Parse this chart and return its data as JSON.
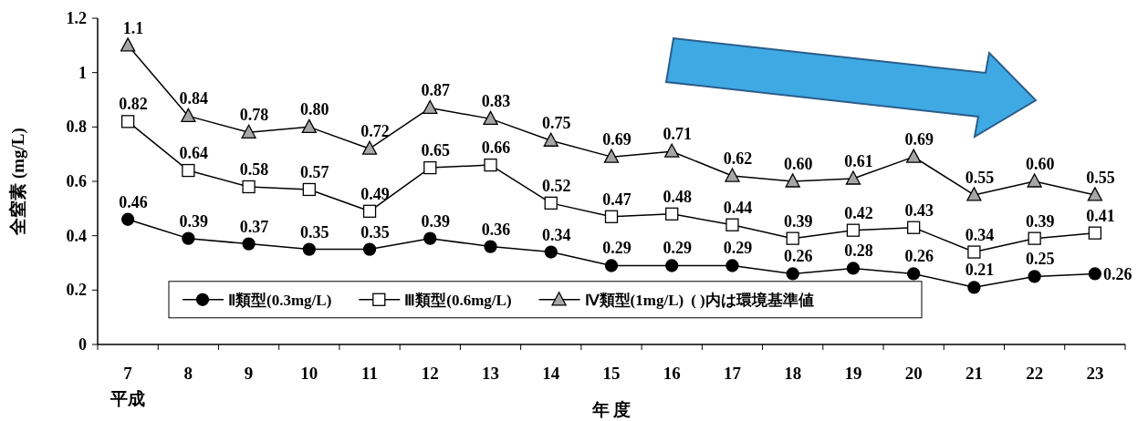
{
  "chart_data": {
    "type": "line",
    "ylabel": "全窒素 (mg/L)",
    "xlabel": "年 度",
    "annotations": [
      "( )内は環境基準値",
      "平成"
    ],
    "categories": [
      "7",
      "8",
      "9",
      "10",
      "11",
      "12",
      "13",
      "14",
      "15",
      "16",
      "17",
      "18",
      "19",
      "20",
      "21",
      "22",
      "23"
    ],
    "ylim": [
      0,
      1.2
    ],
    "yticks": [
      0,
      0.2,
      0.4,
      0.6,
      0.8,
      1,
      1.2
    ],
    "grid": false,
    "legend": "bottom",
    "series": [
      {
        "name": "Ⅱ類型(0.3mg/L)",
        "color": "#000000",
        "marker": "circle",
        "values": [
          0.46,
          0.39,
          0.37,
          0.35,
          0.35,
          0.39,
          0.36,
          0.34,
          0.29,
          0.29,
          0.29,
          0.26,
          0.28,
          0.26,
          0.21,
          0.25,
          0.26
        ],
        "value_labels": [
          "0.46",
          "0.39",
          "0.37",
          "0.35",
          "0.35",
          "0.39",
          "0.36",
          "0.34",
          "0.29",
          "0.29",
          "0.29",
          "0.26",
          "0.28",
          "0.26",
          "0.21",
          "0.25",
          "0.26"
        ]
      },
      {
        "name": "Ⅲ類型(0.6mg/L)",
        "color": "#ffffff",
        "marker": "square",
        "values": [
          0.82,
          0.64,
          0.58,
          0.57,
          0.49,
          0.65,
          0.66,
          0.52,
          0.47,
          0.48,
          0.44,
          0.39,
          0.42,
          0.43,
          0.34,
          0.39,
          0.41
        ],
        "value_labels": [
          "0.82",
          "0.64",
          "0.58",
          "0.57",
          "0.49",
          "0.65",
          "0.66",
          "0.52",
          "0.47",
          "0.48",
          "0.44",
          "0.39",
          "0.42",
          "0.43",
          "0.34",
          "0.39",
          "0.41"
        ]
      },
      {
        "name": "Ⅳ類型(1mg/L)",
        "color": "#a6a6a6",
        "marker": "triangle",
        "values": [
          1.1,
          0.84,
          0.78,
          0.8,
          0.72,
          0.87,
          0.83,
          0.75,
          0.69,
          0.71,
          0.62,
          0.6,
          0.61,
          0.69,
          0.55,
          0.6,
          0.55
        ],
        "value_labels": [
          "1.1",
          "0.84",
          "0.78",
          "0.80",
          "0.72",
          "0.87",
          "0.83",
          "0.75",
          "0.69",
          "0.71",
          "0.62",
          "0.60",
          "0.61",
          "0.69",
          "0.55",
          "0.60",
          "0.55"
        ]
      }
    ]
  }
}
